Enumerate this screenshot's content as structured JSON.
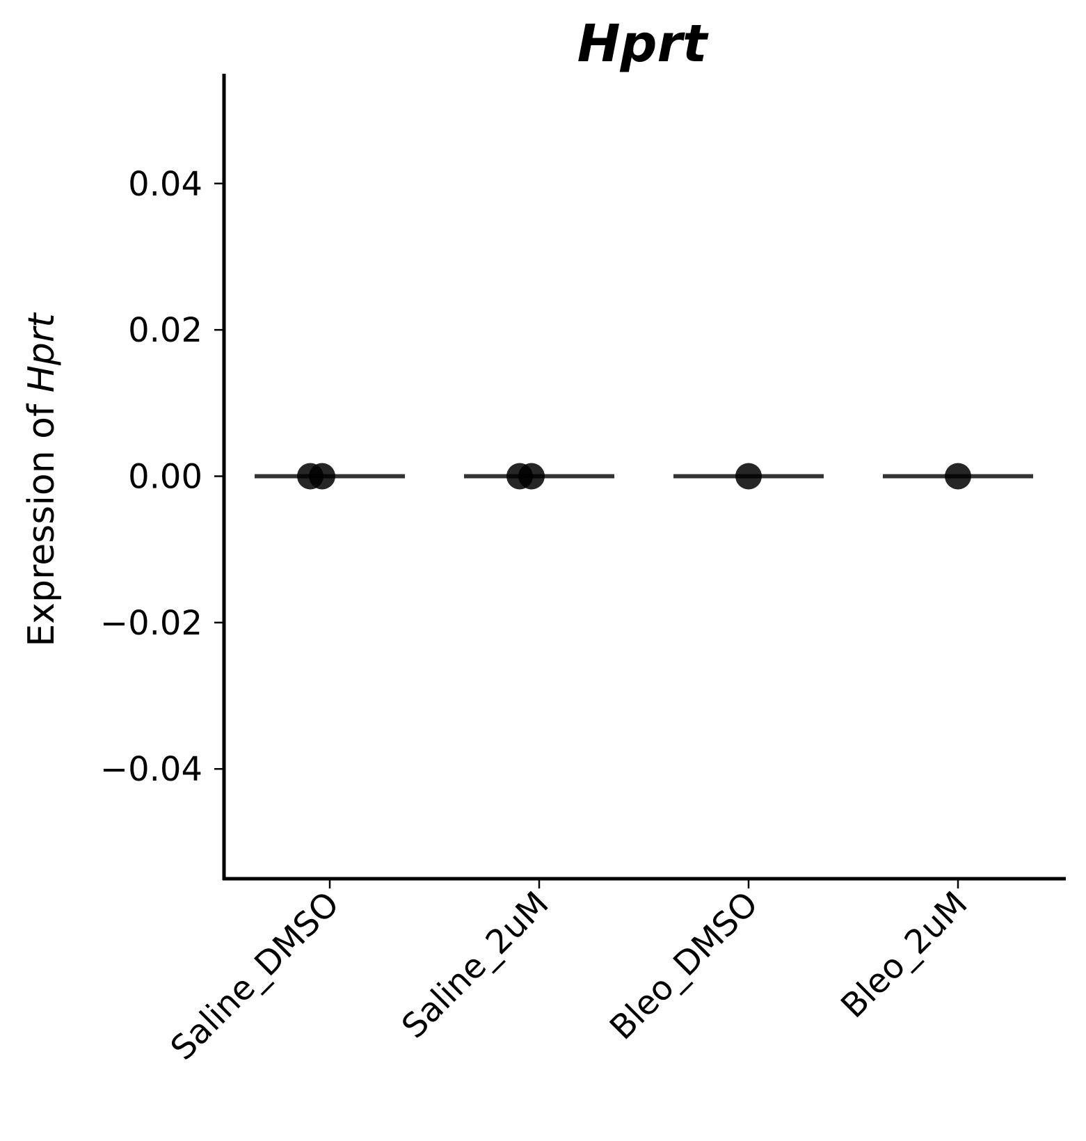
{
  "chart_data": {
    "type": "scatter",
    "title": "Hprt",
    "ylabel_prefix": "Expression of ",
    "ylabel_gene": "Hprt",
    "xlabel": "",
    "categories": [
      "Saline_DMSO",
      "Saline_2uM",
      "Bleo_DMSO",
      "Bleo_2uM"
    ],
    "ylim": [
      -0.055,
      0.055
    ],
    "yticks": [
      0.04,
      0.02,
      0.0,
      -0.02,
      -0.04
    ],
    "ytick_labels": [
      "0.04",
      "0.02",
      "0.00",
      "−0.02",
      "−0.04"
    ],
    "grid": false,
    "points": [
      {
        "category": "Saline_DMSO",
        "values": [
          0.0,
          0.0
        ]
      },
      {
        "category": "Saline_2uM",
        "values": [
          0.0,
          0.0
        ]
      },
      {
        "category": "Bleo_DMSO",
        "values": [
          0.0
        ]
      },
      {
        "category": "Bleo_2uM",
        "values": [
          0.0
        ]
      }
    ],
    "means": [
      0.0,
      0.0,
      0.0,
      0.0
    ],
    "colors": {
      "points": "#000000",
      "mean_line": "#333333",
      "axis": "#000000"
    }
  }
}
